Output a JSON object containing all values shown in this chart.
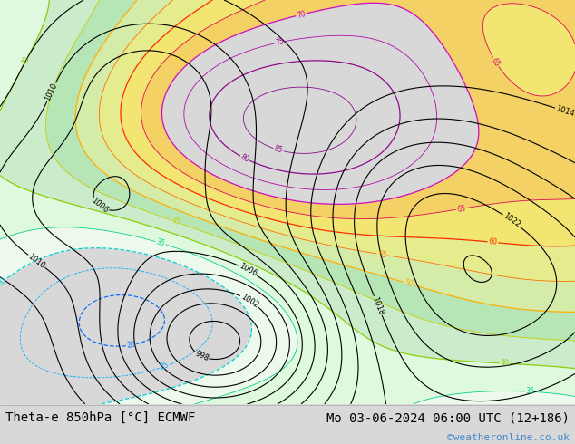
{
  "title_left": "Theta-e 850hPa [°C] ECMWF",
  "title_right": "Mo 03-06-2024 06:00 UTC (12+186)",
  "copyright": "©weatheronline.co.uk",
  "bg_color": "#d8d8d8",
  "map_bg": "#ffffff",
  "bottom_bar_color": "#ffffff",
  "title_font_size": 10,
  "copyright_color": "#4488cc"
}
